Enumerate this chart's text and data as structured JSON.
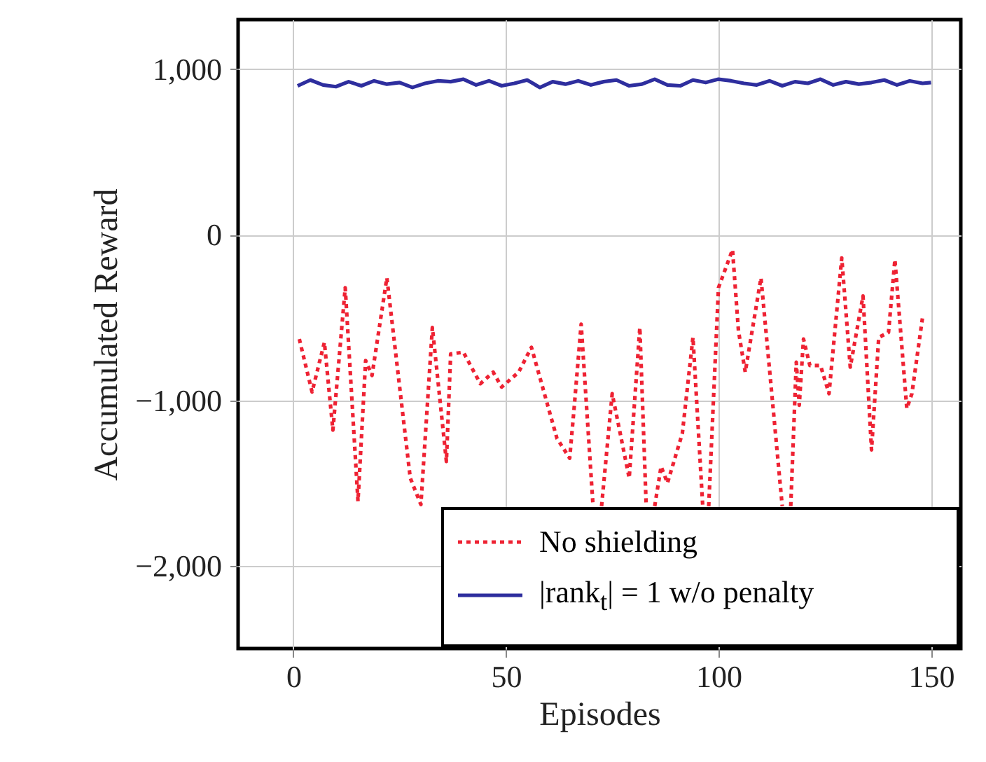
{
  "chart_data": {
    "type": "line",
    "xlabel": "Episodes",
    "ylabel": "Accumulated Reward",
    "xlim": [
      -13,
      157
    ],
    "xticks": [
      0,
      50,
      100,
      150
    ],
    "ylim": [
      -2500,
      1300
    ],
    "yticks": [
      {
        "value": -2000,
        "label": "−2,000"
      },
      {
        "value": -1000,
        "label": "−1,000"
      },
      {
        "value": 0,
        "label": "0"
      },
      {
        "value": 1000,
        "label": "1,000"
      }
    ],
    "grid": true,
    "legend": "bottom right",
    "series": [
      {
        "name": "No shielding",
        "color": "#ee2233",
        "line_style": "dotted",
        "x": [
          1.4,
          4.4,
          7.3,
          9.3,
          12.2,
          15.2,
          17,
          18.5,
          22,
          27.5,
          30,
          32.7,
          36,
          37,
          40,
          44,
          47,
          49,
          53,
          56,
          62,
          65,
          66,
          67.7,
          70.5,
          71.5,
          72.5,
          75,
          79,
          81.5,
          83,
          84,
          85,
          86.5,
          88,
          91.5,
          94,
          96.3,
          97,
          97.7,
          100,
          103.3,
          104.7,
          106.3,
          110,
          115,
          116,
          117,
          118.3,
          119,
          120,
          121.5,
          124,
          126,
          129,
          131,
          134,
          136,
          137.7,
          140,
          141.5,
          144.3,
          145.5,
          148
        ],
        "values": [
          -630,
          -950,
          -650,
          -1180,
          -320,
          -1610,
          -760,
          -850,
          -260,
          -1470,
          -1630,
          -560,
          -1370,
          -720,
          -710,
          -900,
          -830,
          -920,
          -830,
          -680,
          -1230,
          -1350,
          -1060,
          -540,
          -1640,
          null,
          -1640,
          -960,
          -1470,
          -560,
          -1640,
          null,
          -1640,
          -1400,
          -1500,
          -1200,
          -620,
          -1640,
          null,
          -1640,
          -320,
          -90,
          -580,
          -830,
          -260,
          -1640,
          null,
          -1640,
          -770,
          -1030,
          -630,
          -790,
          -790,
          -960,
          -140,
          -800,
          -370,
          -1300,
          -620,
          -590,
          -150,
          -1050,
          -960,
          -500
        ]
      },
      {
        "name": "|rank$_{t}$| = 1 w/o penalty",
        "color": "#2e2e9e",
        "line_style": "solid",
        "x": [
          1,
          4,
          7,
          10,
          13,
          16,
          19,
          22,
          25,
          28,
          31,
          34,
          37,
          40,
          43,
          46,
          49,
          52,
          55,
          58,
          61,
          64,
          67,
          70,
          73,
          76,
          79,
          82,
          85,
          88,
          91,
          94,
          97,
          100,
          103,
          106,
          109,
          112,
          115,
          118,
          121,
          124,
          127,
          130,
          133,
          136,
          139,
          142,
          145,
          148,
          150
        ],
        "values": [
          900,
          935,
          905,
          895,
          925,
          900,
          930,
          910,
          920,
          890,
          915,
          930,
          925,
          940,
          905,
          930,
          900,
          915,
          935,
          890,
          925,
          910,
          930,
          905,
          925,
          935,
          900,
          910,
          940,
          905,
          900,
          935,
          920,
          940,
          930,
          915,
          905,
          930,
          900,
          925,
          915,
          940,
          905,
          925,
          910,
          920,
          935,
          905,
          930,
          915,
          920
        ]
      }
    ]
  }
}
